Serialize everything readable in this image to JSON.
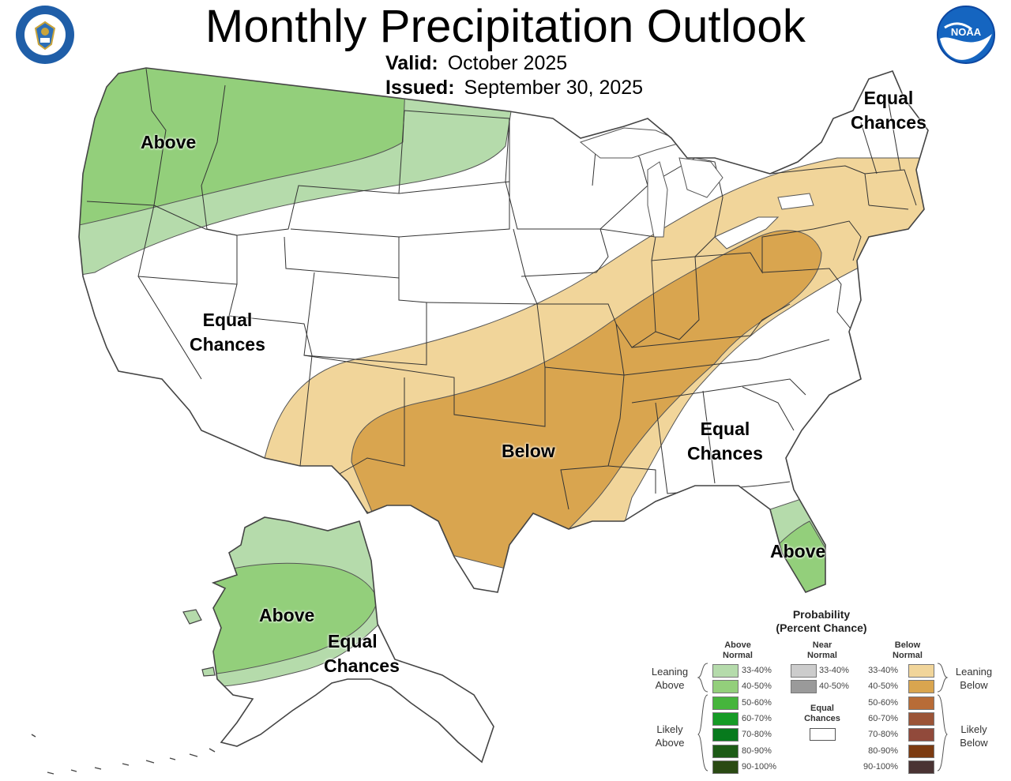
{
  "header": {
    "title": "Monthly Precipitation Outlook",
    "valid_label": "Valid:",
    "valid_value": "October 2025",
    "issued_label": "Issued:",
    "issued_value": "September 30, 2025"
  },
  "logos": {
    "left": "department-of-commerce-seal",
    "right": "noaa-logo",
    "right_text": "NOAA"
  },
  "map_labels": [
    {
      "id": "west-above",
      "text": "Above"
    },
    {
      "id": "west-ec",
      "line1": "Equal",
      "line2": "Chances"
    },
    {
      "id": "ne-ec",
      "line1": "Equal",
      "line2": "Chances"
    },
    {
      "id": "south-below",
      "text": "Below"
    },
    {
      "id": "se-ec",
      "line1": "Equal",
      "line2": "Chances"
    },
    {
      "id": "fl-above",
      "text": "Above"
    },
    {
      "id": "ak-above",
      "text": "Above"
    },
    {
      "id": "ak-ec",
      "line1": "Equal",
      "line2": "Chances"
    }
  ],
  "legend": {
    "title_line1": "Probability",
    "title_line2": "(Percent Chance)",
    "above": {
      "head1": "Above",
      "head2": "Normal",
      "items": [
        {
          "range": "33-40%",
          "color": "#b5dbab"
        },
        {
          "range": "40-50%",
          "color": "#93cf7b"
        },
        {
          "range": "50-60%",
          "color": "#46b53c"
        },
        {
          "range": "60-70%",
          "color": "#169b26"
        },
        {
          "range": "70-80%",
          "color": "#077a1d"
        },
        {
          "range": "80-90%",
          "color": "#1d5b16"
        },
        {
          "range": "90-100%",
          "color": "#2a4a13"
        }
      ]
    },
    "near": {
      "head1": "Near",
      "head2": "Normal",
      "items": [
        {
          "range": "33-40%",
          "color": "#cccccc"
        },
        {
          "range": "40-50%",
          "color": "#9a9a9a"
        }
      ]
    },
    "below": {
      "head1": "Below",
      "head2": "Normal",
      "items": [
        {
          "range": "33-40%",
          "color": "#f1d59a"
        },
        {
          "range": "40-50%",
          "color": "#d9a54f"
        },
        {
          "range": "50-60%",
          "color": "#b86c37"
        },
        {
          "range": "60-70%",
          "color": "#9b5437"
        },
        {
          "range": "70-80%",
          "color": "#914a3b"
        },
        {
          "range": "80-90%",
          "color": "#7c3b11"
        },
        {
          "range": "90-100%",
          "color": "#4a3333"
        }
      ]
    },
    "equal_chances": {
      "line1": "Equal",
      "line2": "Chances"
    },
    "groups": {
      "leaning_above": {
        "line1": "Leaning",
        "line2": "Above"
      },
      "likely_above": {
        "line1": "Likely",
        "line2": "Above"
      },
      "leaning_below": {
        "line1": "Leaning",
        "line2": "Below"
      },
      "likely_below": {
        "line1": "Likely",
        "line2": "Below"
      }
    }
  },
  "colors": {
    "above_light": "#b5dbab",
    "above_medium": "#93cf7b",
    "below_light": "#f1d59a",
    "below_medium": "#d9a54f",
    "border": "#333333",
    "coast": "#555555"
  }
}
